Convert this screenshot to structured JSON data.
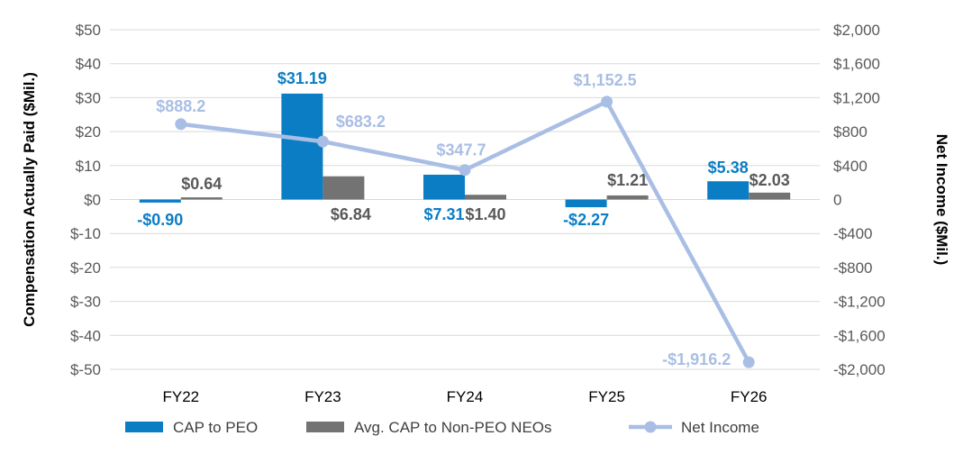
{
  "chart_data": {
    "type": "bar",
    "categories": [
      "FY22",
      "FY23",
      "FY24",
      "FY25",
      "FY26"
    ],
    "ylabel": "Compensation Actually Paid ($Mil.)",
    "y2label": "Net Income ($Mil.)",
    "ylim": [
      -50,
      50
    ],
    "y2lim": [
      -2000,
      2000
    ],
    "yticks": [
      "$50",
      "$40",
      "$30",
      "$20",
      "$10",
      "$0",
      "$-10",
      "$-20",
      "$-30",
      "$-40",
      "$-50"
    ],
    "y2ticks": [
      "$2,000",
      "$1,600",
      "$1,200",
      "$800",
      "$400",
      "0",
      "-$400",
      "-$800",
      "-$1,200",
      "-$1,600",
      "-$2,000"
    ],
    "grid": true,
    "legend": "bottom",
    "series": [
      {
        "name": "CAP to PEO",
        "kind": "bar",
        "axis": "left",
        "color": "#0B7DC5",
        "values": [
          -0.9,
          31.19,
          7.31,
          -2.27,
          5.38
        ],
        "labels": [
          "-$0.90",
          "$31.19",
          "$7.31",
          "-$2.27",
          "$5.38"
        ]
      },
      {
        "name": "Avg. CAP to Non-PEO NEOs",
        "kind": "bar",
        "axis": "left",
        "color": "#737373",
        "values": [
          0.64,
          6.84,
          1.4,
          1.21,
          2.03
        ],
        "labels": [
          "$0.64",
          "$6.84",
          "$1.40",
          "$1.21",
          "$2.03"
        ]
      },
      {
        "name": "Net Income",
        "kind": "line",
        "axis": "right",
        "color": "#A9BEE4",
        "values": [
          888.2,
          683.2,
          347.7,
          1152.5,
          -1916.2
        ],
        "labels": [
          "$888.2",
          "$683.2",
          "$347.7",
          "$1,152.5",
          "-$1,916.2"
        ]
      }
    ]
  }
}
